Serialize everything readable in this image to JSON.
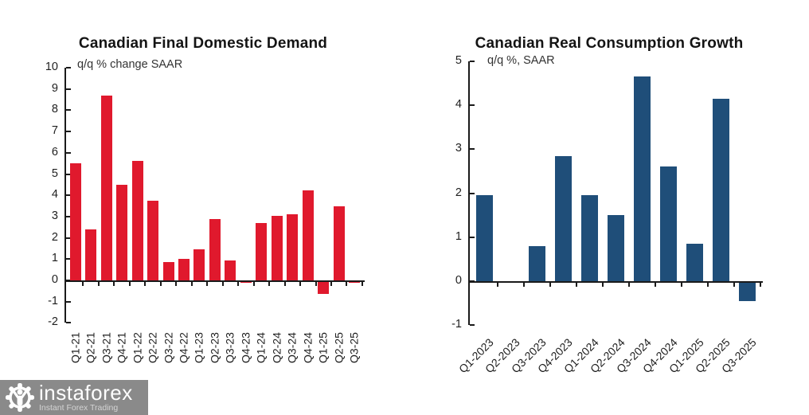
{
  "chart_data": [
    {
      "type": "bar",
      "title": "Canadian Final Domestic Demand",
      "subtitle": "q/q % change SAAR",
      "bar_color": "#e0192d",
      "categories": [
        "Q1-21",
        "Q2-21",
        "Q3-21",
        "Q4-21",
        "Q1-22",
        "Q2-22",
        "Q3-22",
        "Q4-22",
        "Q1-23",
        "Q2-23",
        "Q3-23",
        "Q4-23",
        "Q1-24",
        "Q2-24",
        "Q3-24",
        "Q4-24",
        "Q1-25",
        "Q2-25",
        "Q3-25"
      ],
      "values": [
        5.5,
        2.4,
        8.7,
        4.5,
        5.6,
        3.75,
        0.85,
        1.0,
        1.45,
        2.9,
        0.95,
        -0.1,
        2.7,
        3.05,
        3.1,
        4.25,
        -0.65,
        3.5,
        -0.1
      ],
      "xlabel": "",
      "ylabel": "",
      "ylim": [
        -2,
        10
      ],
      "ytick_step": 1,
      "grid": false,
      "legend": false,
      "x_label_rotation": -90
    },
    {
      "type": "bar",
      "title": "Canadian Real Consumption Growth",
      "subtitle": "q/q %, SAAR",
      "bar_color": "#1f4e79",
      "categories": [
        "Q1-2023",
        "Q2-2023",
        "Q3-2023",
        "Q4-2023",
        "Q1-2024",
        "Q2-2024",
        "Q3-2024",
        "Q4-2024",
        "Q1-2025",
        "Q2-2025",
        "Q3-2025"
      ],
      "values": [
        1.95,
        0.0,
        0.8,
        2.85,
        1.95,
        1.5,
        4.65,
        2.6,
        0.85,
        4.15,
        -0.45
      ],
      "xlabel": "",
      "ylabel": "",
      "ylim": [
        -1,
        5
      ],
      "ytick_step": 1,
      "grid": false,
      "legend": false,
      "x_label_rotation": -45
    }
  ],
  "logo": {
    "brand": "instaforex",
    "tagline": "Instant Forex Trading",
    "banner_color": "#8a8a8a",
    "icon": "instaforex-gear-icon"
  }
}
